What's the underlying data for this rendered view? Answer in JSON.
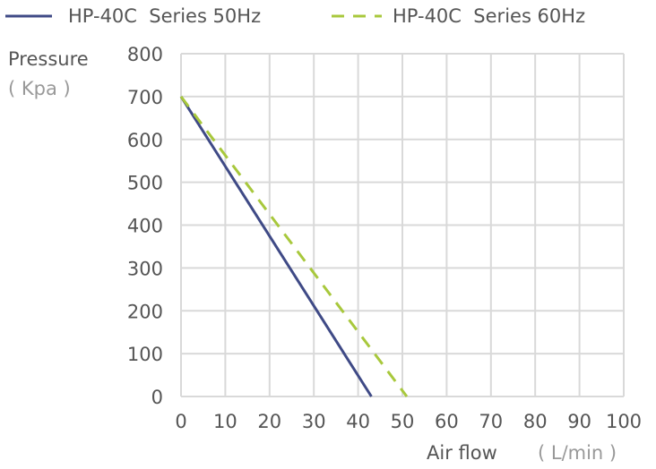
{
  "chart_data": {
    "type": "line",
    "xlabel": "Air flow",
    "xunit": "( L/min )",
    "ylabel": "Pressure",
    "yunit": "( Kpa )",
    "xlim": [
      0,
      100
    ],
    "ylim": [
      0,
      800
    ],
    "xticks": [
      0,
      10,
      20,
      30,
      40,
      50,
      60,
      70,
      80,
      90,
      100
    ],
    "yticks": [
      0,
      100,
      200,
      300,
      400,
      500,
      600,
      700,
      800
    ],
    "grid": true,
    "legend": "top",
    "series": [
      {
        "name": "HP-40C  Series 50Hz",
        "color": "#3f4a86",
        "dash": "solid",
        "x": [
          0,
          43
        ],
        "y": [
          700,
          0
        ]
      },
      {
        "name": "HP-40C  Series 60Hz",
        "color": "#a8c83c",
        "dash": "dashed",
        "x": [
          0,
          51
        ],
        "y": [
          700,
          0
        ]
      }
    ],
    "colors": {
      "grid": "#d9d9d9",
      "text": "#555555",
      "unit_text": "#999999"
    }
  }
}
